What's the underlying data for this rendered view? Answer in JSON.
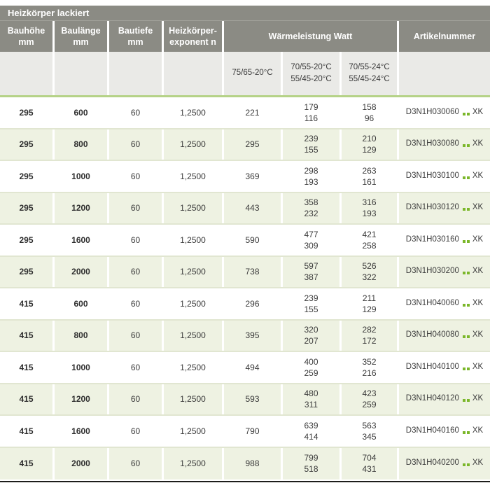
{
  "header": {
    "title": "Heizkörper lackiert",
    "col_bauhoehe": [
      "Bauhöhe",
      "mm"
    ],
    "col_baulaenge": [
      "Baulänge",
      "mm"
    ],
    "col_bautiefe": [
      "Bautiefe",
      "mm"
    ],
    "col_exponent": [
      "Heizkörper-",
      "exponent n"
    ],
    "col_waermeleistung": "Wärmeleistung Watt",
    "col_artikelnummer": "Artikelnummer",
    "sub_75": "75/65-20°C",
    "sub_70_20": [
      "70/55-20°C",
      "55/45-20°C"
    ],
    "sub_70_24": [
      "70/55-24°C",
      "55/45-24°C"
    ]
  },
  "theme": {
    "header_gray": "#8b8b84",
    "subheader_gray": "#eaeae7",
    "row_green": "#eef2e2",
    "divider_green": "#b5d287",
    "dot_green": "#7bb72a"
  },
  "rows": [
    {
      "bauhoehe": "295",
      "baulaenge": "600",
      "bautiefe": "60",
      "exponent": "1,2500",
      "watt_75": "221",
      "watt_70_20": [
        "179",
        "116"
      ],
      "watt_70_24": [
        "158",
        "96"
      ],
      "artikel": "D3N1H030060",
      "artikel_suffix": "XK"
    },
    {
      "bauhoehe": "295",
      "baulaenge": "800",
      "bautiefe": "60",
      "exponent": "1,2500",
      "watt_75": "295",
      "watt_70_20": [
        "239",
        "155"
      ],
      "watt_70_24": [
        "210",
        "129"
      ],
      "artikel": "D3N1H030080",
      "artikel_suffix": "XK"
    },
    {
      "bauhoehe": "295",
      "baulaenge": "1000",
      "bautiefe": "60",
      "exponent": "1,2500",
      "watt_75": "369",
      "watt_70_20": [
        "298",
        "193"
      ],
      "watt_70_24": [
        "263",
        "161"
      ],
      "artikel": "D3N1H030100",
      "artikel_suffix": "XK"
    },
    {
      "bauhoehe": "295",
      "baulaenge": "1200",
      "bautiefe": "60",
      "exponent": "1,2500",
      "watt_75": "443",
      "watt_70_20": [
        "358",
        "232"
      ],
      "watt_70_24": [
        "316",
        "193"
      ],
      "artikel": "D3N1H030120",
      "artikel_suffix": "XK"
    },
    {
      "bauhoehe": "295",
      "baulaenge": "1600",
      "bautiefe": "60",
      "exponent": "1,2500",
      "watt_75": "590",
      "watt_70_20": [
        "477",
        "309"
      ],
      "watt_70_24": [
        "421",
        "258"
      ],
      "artikel": "D3N1H030160",
      "artikel_suffix": "XK"
    },
    {
      "bauhoehe": "295",
      "baulaenge": "2000",
      "bautiefe": "60",
      "exponent": "1,2500",
      "watt_75": "738",
      "watt_70_20": [
        "597",
        "387"
      ],
      "watt_70_24": [
        "526",
        "322"
      ],
      "artikel": "D3N1H030200",
      "artikel_suffix": "XK"
    },
    {
      "bauhoehe": "415",
      "baulaenge": "600",
      "bautiefe": "60",
      "exponent": "1,2500",
      "watt_75": "296",
      "watt_70_20": [
        "239",
        "155"
      ],
      "watt_70_24": [
        "211",
        "129"
      ],
      "artikel": "D3N1H040060",
      "artikel_suffix": "XK"
    },
    {
      "bauhoehe": "415",
      "baulaenge": "800",
      "bautiefe": "60",
      "exponent": "1,2500",
      "watt_75": "395",
      "watt_70_20": [
        "320",
        "207"
      ],
      "watt_70_24": [
        "282",
        "172"
      ],
      "artikel": "D3N1H040080",
      "artikel_suffix": "XK"
    },
    {
      "bauhoehe": "415",
      "baulaenge": "1000",
      "bautiefe": "60",
      "exponent": "1,2500",
      "watt_75": "494",
      "watt_70_20": [
        "400",
        "259"
      ],
      "watt_70_24": [
        "352",
        "216"
      ],
      "artikel": "D3N1H040100",
      "artikel_suffix": "XK"
    },
    {
      "bauhoehe": "415",
      "baulaenge": "1200",
      "bautiefe": "60",
      "exponent": "1,2500",
      "watt_75": "593",
      "watt_70_20": [
        "480",
        "311"
      ],
      "watt_70_24": [
        "423",
        "259"
      ],
      "artikel": "D3N1H040120",
      "artikel_suffix": "XK"
    },
    {
      "bauhoehe": "415",
      "baulaenge": "1600",
      "bautiefe": "60",
      "exponent": "1,2500",
      "watt_75": "790",
      "watt_70_20": [
        "639",
        "414"
      ],
      "watt_70_24": [
        "563",
        "345"
      ],
      "artikel": "D3N1H040160",
      "artikel_suffix": "XK"
    },
    {
      "bauhoehe": "415",
      "baulaenge": "2000",
      "bautiefe": "60",
      "exponent": "1,2500",
      "watt_75": "988",
      "watt_70_20": [
        "799",
        "518"
      ],
      "watt_70_24": [
        "704",
        "431"
      ],
      "artikel": "D3N1H040200",
      "artikel_suffix": "XK"
    }
  ]
}
